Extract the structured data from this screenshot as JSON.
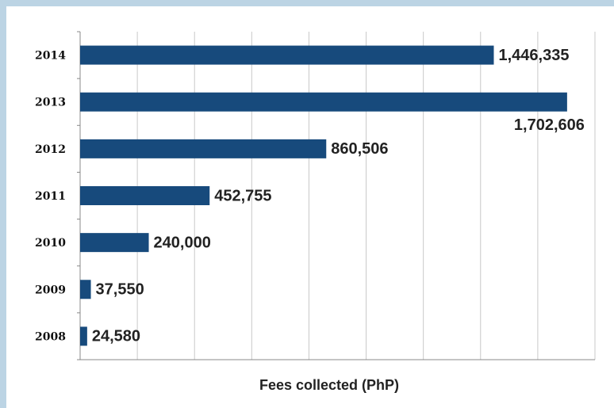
{
  "chart_data": {
    "type": "barh",
    "x_label": "Fees collected (PhP)",
    "categories": [
      "2014",
      "2013",
      "2012",
      "2011",
      "2010",
      "2009",
      "2008"
    ],
    "values": [
      1446335,
      1702606,
      860506,
      452755,
      240000,
      37550,
      24580
    ],
    "value_labels": [
      "1,446,335",
      "1,702,606",
      "860,506",
      "452,755",
      "240,000",
      "37,550",
      "24,580"
    ],
    "color": "#174a7c",
    "xlim": [
      0,
      1800000
    ],
    "xticks": [
      0,
      200000,
      400000,
      600000,
      800000,
      1000000,
      1200000,
      1400000,
      1600000,
      1800000
    ],
    "grid": true
  }
}
